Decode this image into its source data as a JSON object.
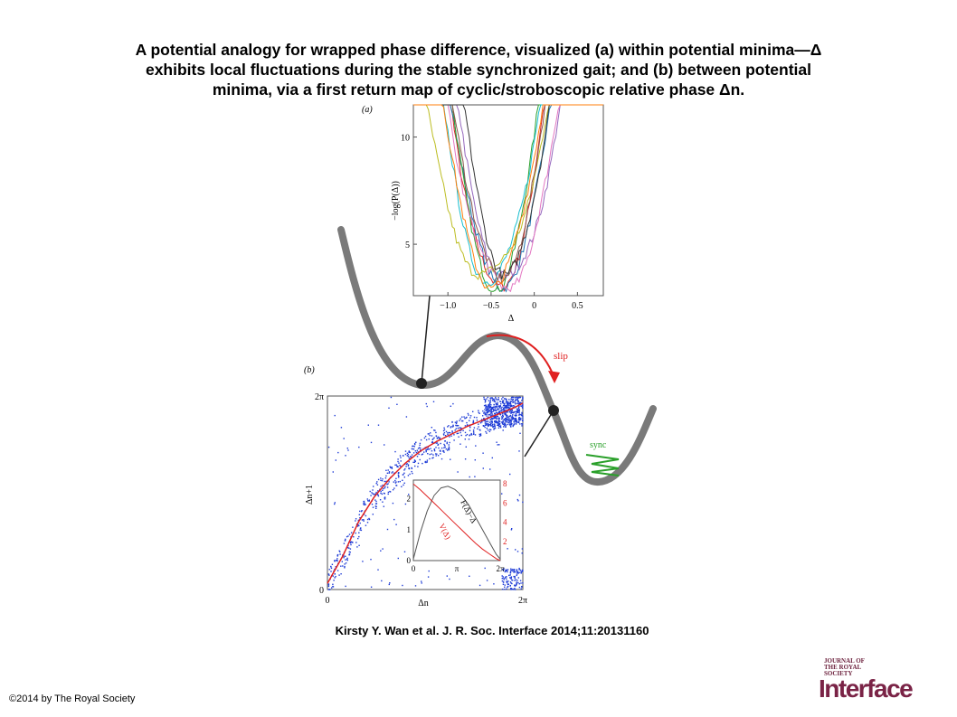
{
  "title_lines": [
    "A potential analogy for wrapped phase difference, visualized (a) within potential minima—Δ",
    "exhibits local fluctuations during the stable synchronized gait; and (b) between potential",
    "minima, via a first return map of cyclic/stroboscopic relative phase Δn."
  ],
  "citation": "Kirsty Y. Wan et al. J. R. Soc. Interface 2014;11:20131160",
  "copyright": "©2014 by The Royal Society",
  "logo": {
    "small_text": "JOURNAL OF THE ROYAL SOCIETY",
    "big_text": "Interface",
    "color": "#7a2346"
  },
  "figure": {
    "potential_labels": {
      "slip": "slip",
      "sync": "sync"
    },
    "colors": {
      "potential": "#7a7a7a",
      "slip_arrow": "#e02020",
      "sync": "#2aa02a",
      "scatter": "#1f3cd6",
      "fit": "#e02020"
    }
  },
  "chart_data": [
    {
      "panel": "(a)",
      "type": "line",
      "xlabel": "Δ",
      "ylabel": "−log(P(Δ))",
      "x_ticks": [
        "−1.0",
        "−0.5",
        "0",
        "0.5"
      ],
      "y_ticks": [
        "5",
        "10"
      ],
      "xlim": [
        -1.4,
        0.8
      ],
      "ylim": [
        2.6,
        11.5
      ],
      "series_colors": [
        "#d62728",
        "#1f77b4",
        "#2ca02c",
        "#9467bd",
        "#17becf",
        "#bcbd22",
        "#e377c2",
        "#8c564b",
        "#333333",
        "#ff7f0e"
      ],
      "series_params": [
        {
          "center": -0.42,
          "width": 0.55,
          "min": 3.0
        },
        {
          "center": -0.38,
          "width": 0.6,
          "min": 3.2
        },
        {
          "center": -0.45,
          "width": 0.52,
          "min": 3.1
        },
        {
          "center": -0.3,
          "width": 0.62,
          "min": 3.4
        },
        {
          "center": -0.5,
          "width": 0.58,
          "min": 3.3
        },
        {
          "center": -0.55,
          "width": 0.75,
          "min": 3.5
        },
        {
          "center": -0.35,
          "width": 0.66,
          "min": 3.0
        },
        {
          "center": -0.4,
          "width": 0.57,
          "min": 3.6
        },
        {
          "center": -0.32,
          "width": 0.54,
          "min": 3.8
        },
        {
          "center": -0.48,
          "width": 0.6,
          "min": 3.2
        }
      ]
    },
    {
      "panel": "(b)",
      "type": "scatter",
      "xlabel": "Δn",
      "ylabel": "Δn+1",
      "x_ticks": [
        "0",
        "2π"
      ],
      "y_ticks": [
        "0",
        "2π"
      ],
      "xlim": [
        0,
        6.283
      ],
      "ylim": [
        0,
        6.283
      ],
      "fit": {
        "description": "return map curve",
        "x": [
          0,
          0.5,
          1.0,
          1.5,
          2.0,
          2.5,
          3.0,
          3.5,
          4.0,
          4.5,
          5.0,
          5.5,
          6.0,
          6.283
        ],
        "y": [
          0.2,
          1.1,
          2.2,
          3.0,
          3.6,
          4.1,
          4.5,
          4.8,
          5.05,
          5.3,
          5.5,
          5.7,
          5.9,
          6.05
        ]
      },
      "inset": {
        "type": "line",
        "x_ticks": [
          "0",
          "π",
          "2π"
        ],
        "y_ticks_left": [
          "0",
          "1",
          "2"
        ],
        "y_ticks_right": [
          "2",
          "4",
          "6",
          "8"
        ],
        "series": [
          {
            "name": "F(Δ)−Δ",
            "color": "#555555",
            "x": [
              0,
              0.5,
              1.0,
              1.5,
              2.0,
              2.5,
              3.0,
              3.5,
              4.0,
              4.5,
              5.0,
              5.5,
              6.0,
              6.283
            ],
            "y": [
              0.05,
              0.9,
              1.6,
              2.1,
              2.35,
              2.4,
              2.3,
              2.1,
              1.8,
              1.4,
              1.0,
              0.6,
              0.2,
              0.05
            ]
          },
          {
            "name": "V(Δ)",
            "color": "#e02020",
            "x": [
              0,
              0.5,
              1.0,
              1.5,
              2.0,
              2.5,
              3.0,
              3.5,
              4.0,
              4.5,
              5.0,
              5.5,
              6.0,
              6.283
            ],
            "y": [
              8.0,
              7.4,
              6.7,
              6.0,
              5.3,
              4.6,
              3.9,
              3.2,
              2.5,
              1.8,
              1.2,
              0.7,
              0.2,
              0.0
            ]
          }
        ]
      }
    }
  ]
}
